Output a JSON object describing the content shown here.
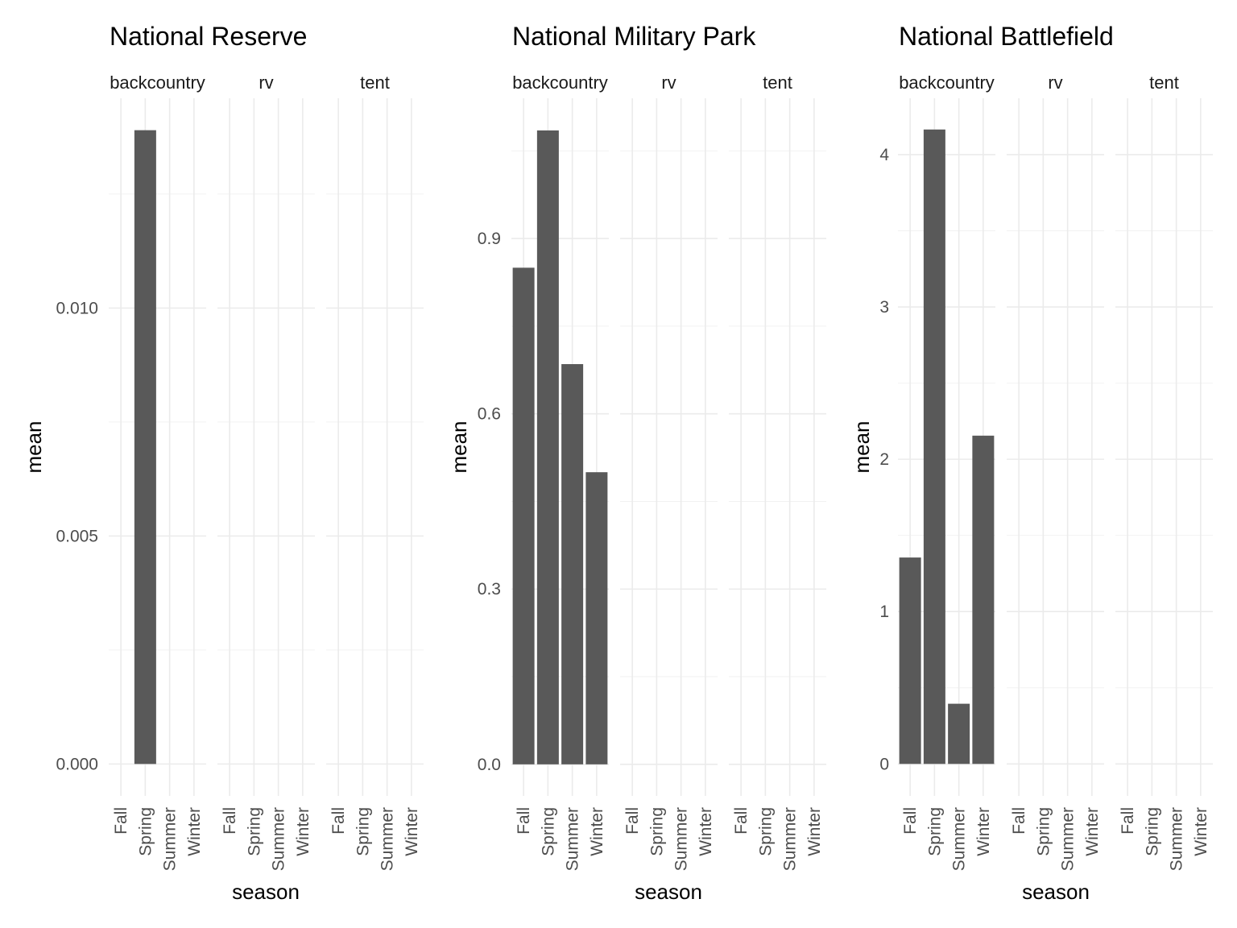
{
  "chart_data": [
    {
      "type": "bar",
      "title": "National Reserve",
      "xlabel": "season",
      "ylabel": "mean",
      "facets": [
        "backcountry",
        "rv",
        "tent"
      ],
      "categories": [
        "Fall",
        "Spring",
        "Summer",
        "Winter"
      ],
      "ylim": [
        -0.0007,
        0.0146
      ],
      "yticks": [
        0.0,
        0.005,
        0.01
      ],
      "ytick_labels": [
        "0.000",
        "0.005",
        "0.010"
      ],
      "y_minor": [
        0.0025,
        0.0075,
        0.0125
      ],
      "values": [
        [
          0,
          0.0139,
          0,
          0
        ],
        [
          0,
          0,
          0,
          0
        ],
        [
          0,
          0,
          0,
          0
        ]
      ]
    },
    {
      "type": "bar",
      "title": "National Military Park",
      "xlabel": "season",
      "ylabel": "mean",
      "facets": [
        "backcountry",
        "rv",
        "tent"
      ],
      "categories": [
        "Fall",
        "Spring",
        "Summer",
        "Winter"
      ],
      "ylim": [
        -0.054,
        1.14
      ],
      "yticks": [
        0.0,
        0.3,
        0.6,
        0.9
      ],
      "ytick_labels": [
        "0.0",
        "0.3",
        "0.6",
        "0.9"
      ],
      "y_minor": [
        0.15,
        0.45,
        0.75,
        1.05
      ],
      "values": [
        [
          0.85,
          1.085,
          0.685,
          0.5
        ],
        [
          0,
          0,
          0,
          0
        ],
        [
          0,
          0,
          0,
          0
        ]
      ]
    },
    {
      "type": "bar",
      "title": "National Battlefield",
      "xlabel": "season",
      "ylabel": "mean",
      "facets": [
        "backcountry",
        "rv",
        "tent"
      ],
      "categories": [
        "Fall",
        "Spring",
        "Summer",
        "Winter"
      ],
      "ylim": [
        -0.21,
        4.37
      ],
      "yticks": [
        0,
        1,
        2,
        3,
        4
      ],
      "ytick_labels": [
        "0",
        "1",
        "2",
        "3",
        "4"
      ],
      "y_minor": [
        0.5,
        1.5,
        2.5,
        3.5
      ],
      "values": [
        [
          1.355,
          4.165,
          0.395,
          2.155
        ],
        [
          0,
          0,
          0,
          0
        ],
        [
          0,
          0,
          0,
          0
        ]
      ]
    }
  ],
  "colors": {
    "bar": "#595959",
    "grid_major": "#ebebeb",
    "grid_minor": "#f2f2f2",
    "tick_text": "#4d4d4d"
  }
}
